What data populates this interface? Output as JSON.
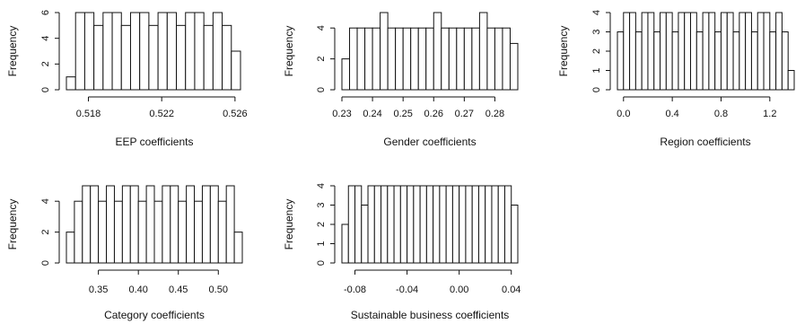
{
  "chart_data": [
    {
      "type": "bar",
      "xlabel": "EEP coefficients",
      "ylabel": "Frequency",
      "bins_start": 0.5168,
      "bin_width": 0.0005,
      "values": [
        1,
        6,
        6,
        5,
        6,
        6,
        5,
        6,
        6,
        5,
        6,
        6,
        5,
        6,
        6,
        5,
        6,
        5,
        3
      ],
      "xticks": [
        0.518,
        0.522,
        0.526
      ],
      "xtick_labels": [
        "0.518",
        "0.522",
        "0.526"
      ],
      "yticks": [
        0,
        2,
        4,
        6
      ],
      "ylim": [
        0,
        6
      ]
    },
    {
      "type": "bar",
      "xlabel": "Gender coefficients",
      "ylabel": "Frequency",
      "bins_start": 0.23,
      "bin_width": 0.0025,
      "values": [
        2,
        4,
        4,
        4,
        4,
        5,
        4,
        4,
        4,
        4,
        4,
        4,
        5,
        4,
        4,
        4,
        4,
        4,
        5,
        4,
        4,
        4,
        3
      ],
      "xticks": [
        0.23,
        0.24,
        0.25,
        0.26,
        0.27,
        0.28
      ],
      "xtick_labels": [
        "0.23",
        "0.24",
        "0.25",
        "0.26",
        "0.27",
        "0.28"
      ],
      "yticks": [
        0,
        2,
        4
      ],
      "ylim": [
        0,
        5
      ]
    },
    {
      "type": "bar",
      "xlabel": "Region coefficients",
      "ylabel": "Frequency",
      "bins_start": -0.05,
      "bin_width": 0.05,
      "values": [
        3,
        4,
        4,
        3,
        4,
        4,
        3,
        4,
        4,
        3,
        4,
        4,
        4,
        3,
        4,
        4,
        3,
        4,
        4,
        3,
        4,
        4,
        3,
        4,
        4,
        3,
        4,
        3,
        1
      ],
      "xticks": [
        0.0,
        0.4,
        0.8,
        1.2
      ],
      "xtick_labels": [
        "0.0",
        "0.4",
        "0.8",
        "1.2"
      ],
      "yticks": [
        0,
        1,
        2,
        3,
        4
      ],
      "ylim": [
        0,
        4
      ]
    },
    {
      "type": "bar",
      "xlabel": "Category coefficients",
      "ylabel": "Frequency",
      "bins_start": 0.31,
      "bin_width": 0.01,
      "values": [
        2,
        4,
        5,
        5,
        4,
        5,
        4,
        5,
        5,
        4,
        5,
        4,
        5,
        5,
        4,
        5,
        4,
        5,
        5,
        4,
        5,
        2
      ],
      "xticks": [
        0.35,
        0.4,
        0.45,
        0.5
      ],
      "xtick_labels": [
        "0.35",
        "0.40",
        "0.45",
        "0.50"
      ],
      "yticks": [
        0,
        2,
        4
      ],
      "ylim": [
        0,
        5
      ]
    },
    {
      "type": "bar",
      "xlabel": "Sustainable business coefficients",
      "ylabel": "Frequency",
      "bins_start": -0.09,
      "bin_width": 0.005,
      "values": [
        2,
        4,
        4,
        3,
        4,
        4,
        4,
        4,
        4,
        4,
        4,
        4,
        4,
        4,
        4,
        4,
        4,
        4,
        4,
        4,
        4,
        4,
        4,
        4,
        4,
        4,
        3
      ],
      "xticks": [
        -0.08,
        -0.04,
        0.0,
        0.04
      ],
      "xtick_labels": [
        "-0.08",
        "-0.04",
        "0.00",
        "0.04"
      ],
      "yticks": [
        0,
        1,
        2,
        3,
        4
      ],
      "ylim": [
        0,
        4
      ]
    }
  ]
}
